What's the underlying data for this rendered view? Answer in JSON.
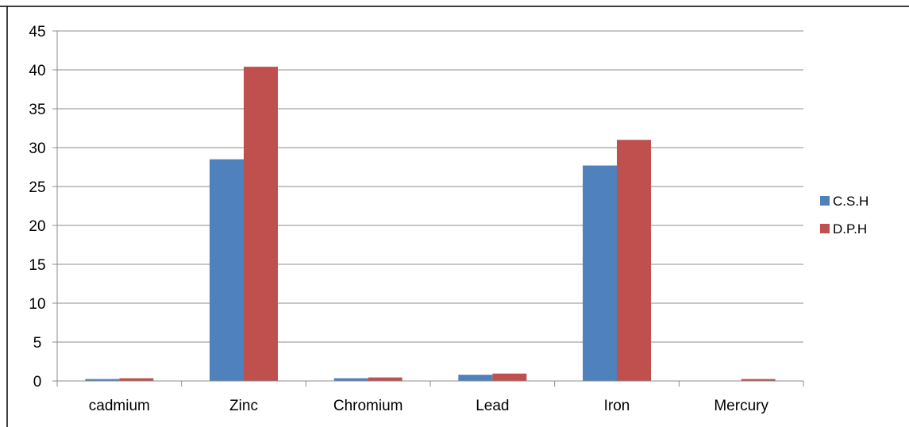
{
  "chart_data": {
    "type": "bar",
    "title": "",
    "xlabel": "",
    "ylabel": "",
    "categories": [
      "cadmium",
      "Zinc",
      "Chromium",
      "Lead",
      "Iron",
      "Mercury"
    ],
    "series": [
      {
        "name": "C.S.H",
        "color": "#4F81BD",
        "values": [
          0.25,
          28.5,
          0.35,
          0.8,
          27.7,
          0.0
        ]
      },
      {
        "name": "D.P.H",
        "color": "#C0504D",
        "values": [
          0.35,
          40.4,
          0.45,
          0.95,
          31.0,
          0.25
        ]
      }
    ],
    "ylim": [
      0,
      45
    ],
    "yticks": [
      0,
      5,
      10,
      15,
      20,
      25,
      30,
      35,
      40,
      45
    ],
    "grid": true,
    "legend_position": "right"
  }
}
